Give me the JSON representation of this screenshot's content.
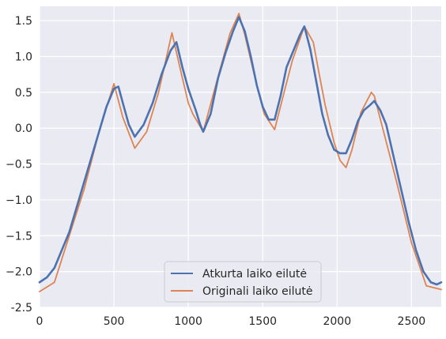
{
  "colors": {
    "background": "#ffffff",
    "plot_background": "#eaeaf2",
    "grid": "#ffffff",
    "reconstructed_series": "#4c72b0",
    "original_series": "#dd8452",
    "tick_text": "#262626"
  },
  "chart_data": {
    "type": "line",
    "title": "",
    "xlabel": "",
    "ylabel": "",
    "xlim": [
      0,
      2700
    ],
    "ylim": [
      -2.5,
      1.7
    ],
    "grid": true,
    "legend_location": "bottom-center",
    "x_ticks": [
      {
        "value": 0,
        "label": "0"
      },
      {
        "value": 500,
        "label": "500"
      },
      {
        "value": 1000,
        "label": "1000"
      },
      {
        "value": 1500,
        "label": "1500"
      },
      {
        "value": 2000,
        "label": "2000"
      },
      {
        "value": 2500,
        "label": "2500"
      }
    ],
    "y_ticks": [
      {
        "value": -2.5,
        "label": "-2.5"
      },
      {
        "value": -2.0,
        "label": "−2.0"
      },
      {
        "value": -1.5,
        "label": "−1.5"
      },
      {
        "value": -1.0,
        "label": "−1.0"
      },
      {
        "value": -0.5,
        "label": "−0.5"
      },
      {
        "value": 0.0,
        "label": "0.0"
      },
      {
        "value": 0.5,
        "label": "0.5"
      },
      {
        "value": 1.0,
        "label": "1.0"
      },
      {
        "value": 1.5,
        "label": "1.5"
      }
    ],
    "series": [
      {
        "name": "Originali laiko eilutė",
        "color": "#dd8452",
        "x": [
          0,
          100,
          200,
          300,
          400,
          500,
          560,
          640,
          720,
          800,
          890,
          960,
          1000,
          1030,
          1100,
          1200,
          1280,
          1340,
          1380,
          1460,
          1510,
          1580,
          1650,
          1700,
          1780,
          1840,
          1880,
          1920,
          1980,
          2020,
          2060,
          2100,
          2160,
          2230,
          2250,
          2300,
          2400,
          2500,
          2600,
          2700
        ],
        "y": [
          -2.28,
          -2.15,
          -1.5,
          -0.85,
          -0.05,
          0.62,
          0.15,
          -0.28,
          -0.05,
          0.5,
          1.33,
          0.7,
          0.35,
          0.2,
          -0.05,
          0.72,
          1.32,
          1.6,
          1.3,
          0.6,
          0.2,
          -0.02,
          0.55,
          0.95,
          1.42,
          1.2,
          0.75,
          0.32,
          -0.2,
          -0.45,
          -0.55,
          -0.3,
          0.22,
          0.5,
          0.45,
          0.05,
          -0.75,
          -1.6,
          -2.2,
          -2.25
        ]
      },
      {
        "name": "Atkurta laiko eilutė",
        "color": "#4c72b0",
        "x": [
          0,
          50,
          100,
          150,
          200,
          250,
          300,
          350,
          400,
          450,
          500,
          530,
          560,
          600,
          640,
          700,
          760,
          820,
          880,
          920,
          960,
          1000,
          1050,
          1080,
          1100,
          1150,
          1200,
          1250,
          1300,
          1340,
          1380,
          1420,
          1460,
          1500,
          1540,
          1580,
          1620,
          1660,
          1700,
          1750,
          1780,
          1820,
          1860,
          1900,
          1940,
          1980,
          2020,
          2060,
          2100,
          2140,
          2180,
          2220,
          2250,
          2290,
          2330,
          2380,
          2430,
          2480,
          2530,
          2580,
          2630,
          2670,
          2700
        ],
        "y": [
          -2.15,
          -2.08,
          -1.95,
          -1.7,
          -1.45,
          -1.1,
          -0.75,
          -0.4,
          -0.05,
          0.3,
          0.55,
          0.58,
          0.35,
          0.05,
          -0.12,
          0.05,
          0.35,
          0.75,
          1.08,
          1.2,
          0.85,
          0.55,
          0.25,
          0.05,
          -0.05,
          0.2,
          0.7,
          1.05,
          1.35,
          1.55,
          1.35,
          1.0,
          0.6,
          0.3,
          0.12,
          0.12,
          0.45,
          0.85,
          1.05,
          1.3,
          1.42,
          1.1,
          0.65,
          0.2,
          -0.1,
          -0.3,
          -0.35,
          -0.35,
          -0.15,
          0.1,
          0.25,
          0.32,
          0.38,
          0.25,
          0.05,
          -0.4,
          -0.85,
          -1.3,
          -1.7,
          -2.0,
          -2.15,
          -2.18,
          -2.15
        ]
      }
    ]
  }
}
